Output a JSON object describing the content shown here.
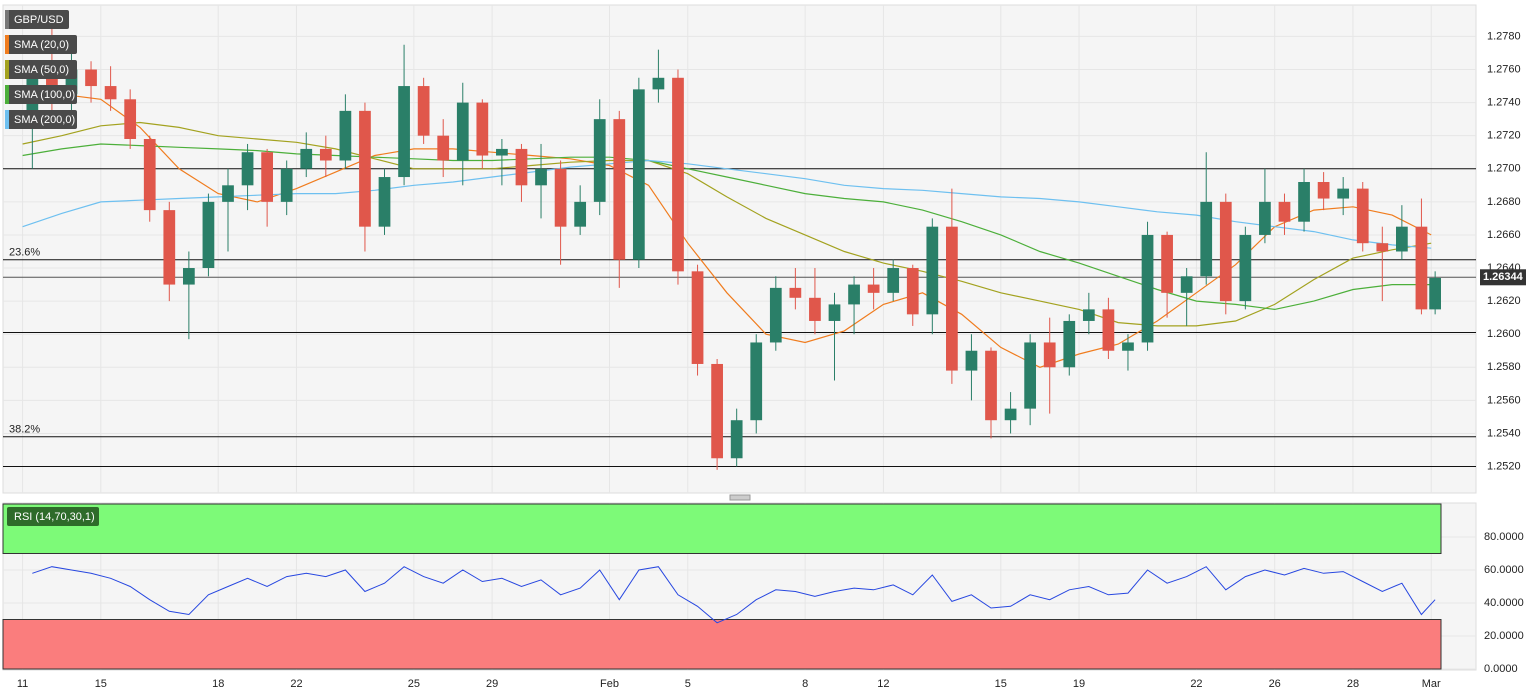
{
  "chart_data": [
    {
      "type": "candlestick",
      "symbol": "GBP/USD",
      "up_color": "#2a7f68",
      "down_color": "#e0574b",
      "grid": true,
      "xlim": [
        -0.5,
        36.25
      ],
      "ylim": [
        1.2504,
        1.2799
      ],
      "yticks": [
        {
          "value": 1.252,
          "label": "1.2520"
        },
        {
          "value": 1.254,
          "label": "1.2540"
        },
        {
          "value": 1.256,
          "label": "1.2560"
        },
        {
          "value": 1.258,
          "label": "1.2580"
        },
        {
          "value": 1.26,
          "label": "1.2600"
        },
        {
          "value": 1.262,
          "label": "1.2620"
        },
        {
          "value": 1.264,
          "label": "1.2640"
        },
        {
          "value": 1.266,
          "label": "1.2660"
        },
        {
          "value": 1.268,
          "label": "1.2680"
        },
        {
          "value": 1.27,
          "label": "1.2700"
        },
        {
          "value": 1.272,
          "label": "1.2720"
        },
        {
          "value": 1.274,
          "label": "1.2740"
        },
        {
          "value": 1.276,
          "label": "1.2760"
        },
        {
          "value": 1.278,
          "label": "1.2780"
        }
      ],
      "xticks": [
        {
          "value": 0,
          "label": "11"
        },
        {
          "value": 2,
          "label": "15"
        },
        {
          "value": 5,
          "label": "18"
        },
        {
          "value": 7,
          "label": "22"
        },
        {
          "value": 10,
          "label": "25"
        },
        {
          "value": 12,
          "label": "29"
        },
        {
          "value": 15,
          "label": "Feb"
        },
        {
          "value": 17,
          "label": "5"
        },
        {
          "value": 20,
          "label": "8"
        },
        {
          "value": 22,
          "label": "12"
        },
        {
          "value": 25,
          "label": "15"
        },
        {
          "value": 27,
          "label": "19"
        },
        {
          "value": 30,
          "label": "22"
        },
        {
          "value": 32,
          "label": "26"
        },
        {
          "value": 34,
          "label": "28"
        },
        {
          "value": 36,
          "label": "Mar"
        }
      ],
      "x": [
        0.25,
        0.75,
        1.25,
        1.75,
        2.25,
        2.75,
        3.25,
        3.75,
        4.25,
        4.75,
        5.25,
        5.75,
        6.25,
        6.75,
        7.25,
        7.75,
        8.25,
        8.75,
        9.25,
        9.75,
        10.25,
        10.75,
        11.25,
        11.75,
        12.25,
        12.75,
        13.25,
        13.75,
        14.25,
        14.75,
        15.25,
        15.75,
        16.25,
        16.75,
        17.25,
        17.75,
        18.25,
        18.75,
        19.25,
        19.75,
        20.25,
        20.75,
        21.25,
        21.75,
        22.25,
        22.75,
        23.25,
        23.75,
        24.25,
        24.75,
        25.25,
        25.75,
        26.25,
        26.75,
        27.25,
        27.75,
        28.25,
        28.75,
        29.25,
        29.75,
        30.25,
        30.75,
        31.25,
        31.75,
        32.25,
        32.75,
        33.25,
        33.75,
        34.25,
        34.75,
        35.25,
        35.75,
        36.1
      ],
      "open": [
        1.2725,
        1.2755,
        1.2745,
        1.276,
        1.275,
        1.2742,
        1.2718,
        1.2675,
        1.263,
        1.264,
        1.268,
        1.269,
        1.271,
        1.268,
        1.27,
        1.2712,
        1.2705,
        1.2735,
        1.2665,
        1.2695,
        1.275,
        1.272,
        1.2705,
        1.274,
        1.2708,
        1.2712,
        1.269,
        1.27,
        1.2665,
        1.268,
        1.273,
        1.2645,
        1.2748,
        1.2755,
        1.2638,
        1.2582,
        1.2525,
        1.2548,
        1.2595,
        1.2628,
        1.2622,
        1.2608,
        1.2618,
        1.263,
        1.2625,
        1.264,
        1.2612,
        1.2665,
        1.2578,
        1.259,
        1.2548,
        1.2555,
        1.2595,
        1.258,
        1.2608,
        1.2615,
        1.259,
        1.2595,
        1.266,
        1.2625,
        1.2635,
        1.268,
        1.262,
        1.266,
        1.268,
        1.2668,
        1.2692,
        1.2682,
        1.2688,
        1.2655,
        1.265,
        1.2665,
        1.2615
      ],
      "high": [
        1.2765,
        1.2785,
        1.277,
        1.2765,
        1.2762,
        1.2748,
        1.272,
        1.268,
        1.265,
        1.2685,
        1.27,
        1.2715,
        1.2712,
        1.2705,
        1.2722,
        1.272,
        1.2745,
        1.274,
        1.27,
        1.2775,
        1.2755,
        1.273,
        1.2752,
        1.2742,
        1.2718,
        1.2715,
        1.2715,
        1.2705,
        1.269,
        1.2742,
        1.2735,
        1.2755,
        1.2772,
        1.276,
        1.2642,
        1.2585,
        1.2555,
        1.26,
        1.2635,
        1.264,
        1.264,
        1.2625,
        1.2635,
        1.264,
        1.2645,
        1.2642,
        1.267,
        1.2688,
        1.26,
        1.2592,
        1.2565,
        1.26,
        1.261,
        1.2612,
        1.2625,
        1.2622,
        1.26,
        1.2668,
        1.2662,
        1.264,
        1.271,
        1.2685,
        1.2665,
        1.27,
        1.2685,
        1.27,
        1.2698,
        1.2695,
        1.2692,
        1.2665,
        1.2678,
        1.2682,
        1.2638
      ],
      "low": [
        1.27,
        1.2735,
        1.2735,
        1.274,
        1.2735,
        1.2712,
        1.2668,
        1.262,
        1.2597,
        1.2635,
        1.265,
        1.2675,
        1.2665,
        1.2672,
        1.2695,
        1.2695,
        1.27,
        1.265,
        1.266,
        1.269,
        1.2715,
        1.2695,
        1.269,
        1.27,
        1.269,
        1.268,
        1.267,
        1.2642,
        1.266,
        1.2672,
        1.2628,
        1.264,
        1.274,
        1.263,
        1.2575,
        1.2518,
        1.252,
        1.254,
        1.259,
        1.2615,
        1.26,
        1.2572,
        1.26,
        1.2615,
        1.262,
        1.2605,
        1.26,
        1.257,
        1.256,
        1.2537,
        1.254,
        1.2545,
        1.2552,
        1.2575,
        1.26,
        1.2585,
        1.2578,
        1.259,
        1.261,
        1.2605,
        1.263,
        1.2612,
        1.2615,
        1.2655,
        1.266,
        1.2662,
        1.2675,
        1.2672,
        1.265,
        1.262,
        1.2645,
        1.2612,
        1.2612
      ],
      "close": [
        1.2755,
        1.2745,
        1.276,
        1.275,
        1.2742,
        1.2718,
        1.2675,
        1.263,
        1.264,
        1.268,
        1.269,
        1.271,
        1.268,
        1.27,
        1.2712,
        1.2705,
        1.2735,
        1.2665,
        1.2695,
        1.275,
        1.272,
        1.2705,
        1.274,
        1.2708,
        1.2712,
        1.269,
        1.27,
        1.2665,
        1.268,
        1.273,
        1.2645,
        1.2748,
        1.2755,
        1.2638,
        1.2582,
        1.2525,
        1.2548,
        1.2595,
        1.2628,
        1.2622,
        1.2608,
        1.2618,
        1.263,
        1.2625,
        1.264,
        1.2612,
        1.2665,
        1.2578,
        1.259,
        1.2548,
        1.2555,
        1.2595,
        1.258,
        1.2608,
        1.2615,
        1.259,
        1.2595,
        1.266,
        1.2625,
        1.2635,
        1.268,
        1.262,
        1.266,
        1.268,
        1.2668,
        1.2692,
        1.2682,
        1.2688,
        1.2655,
        1.265,
        1.2665,
        1.2615,
        1.2634
      ],
      "overlays": [
        {
          "name": "SMA (20,0)",
          "color": "#f07c1e",
          "x": [
            0,
            1,
            2,
            3,
            4,
            5,
            6,
            7,
            8,
            9,
            10,
            11,
            12,
            13,
            14,
            15,
            16,
            17,
            18,
            19,
            20,
            21,
            22,
            23,
            24,
            25,
            26,
            27,
            28,
            29,
            30,
            31,
            32,
            33,
            34,
            35,
            36
          ],
          "values": [
            1.274,
            1.2745,
            1.2742,
            1.2725,
            1.27,
            1.2685,
            1.268,
            1.2688,
            1.2698,
            1.2708,
            1.2712,
            1.2712,
            1.271,
            1.2708,
            1.2706,
            1.2702,
            1.269,
            1.2655,
            1.2625,
            1.26,
            1.2595,
            1.2602,
            1.2618,
            1.2625,
            1.2612,
            1.2592,
            1.258,
            1.2588,
            1.2594,
            1.2608,
            1.2625,
            1.2642,
            1.2665,
            1.2675,
            1.2677,
            1.2672,
            1.266
          ]
        },
        {
          "name": "SMA (50,0)",
          "color": "#a3a21f",
          "x": [
            0,
            1,
            2,
            3,
            4,
            5,
            6,
            7,
            8,
            9,
            10,
            11,
            12,
            13,
            14,
            15,
            16,
            17,
            18,
            19,
            20,
            21,
            22,
            23,
            24,
            25,
            26,
            27,
            28,
            29,
            30,
            31,
            32,
            33,
            34,
            35,
            36
          ],
          "values": [
            1.2715,
            1.272,
            1.2726,
            1.2728,
            1.2725,
            1.272,
            1.2718,
            1.2716,
            1.2712,
            1.2706,
            1.27,
            1.27,
            1.27,
            1.2702,
            1.2704,
            1.2705,
            1.2705,
            1.2697,
            1.2683,
            1.267,
            1.266,
            1.265,
            1.2643,
            1.2638,
            1.2632,
            1.2625,
            1.262,
            1.2615,
            1.2607,
            1.2605,
            1.2605,
            1.2608,
            1.2618,
            1.2633,
            1.2646,
            1.2651,
            1.2655
          ]
        },
        {
          "name": "SMA (100,0)",
          "color": "#4caf3a",
          "x": [
            0,
            1,
            2,
            3,
            4,
            5,
            6,
            7,
            8,
            9,
            10,
            11,
            12,
            13,
            14,
            15,
            16,
            17,
            18,
            19,
            20,
            21,
            22,
            23,
            24,
            25,
            26,
            27,
            28,
            29,
            30,
            31,
            32,
            33,
            34,
            35,
            36
          ],
          "values": [
            1.2708,
            1.2712,
            1.2715,
            1.2714,
            1.2713,
            1.2712,
            1.2711,
            1.2709,
            1.2708,
            1.2707,
            1.2706,
            1.2705,
            1.2705,
            1.2706,
            1.2707,
            1.2707,
            1.2705,
            1.27,
            1.2695,
            1.269,
            1.2685,
            1.2682,
            1.268,
            1.2675,
            1.2668,
            1.266,
            1.265,
            1.2643,
            1.2635,
            1.2627,
            1.262,
            1.2618,
            1.2615,
            1.262,
            1.2627,
            1.263,
            1.263
          ]
        },
        {
          "name": "SMA (200,0)",
          "color": "#6ec0f0",
          "x": [
            0,
            1,
            2,
            3,
            4,
            5,
            6,
            7,
            8,
            9,
            10,
            11,
            12,
            13,
            14,
            15,
            16,
            17,
            18,
            19,
            20,
            21,
            22,
            23,
            24,
            25,
            26,
            27,
            28,
            29,
            30,
            31,
            32,
            33,
            34,
            35,
            36
          ],
          "values": [
            1.2665,
            1.2673,
            1.268,
            1.2681,
            1.2682,
            1.2683,
            1.2684,
            1.2685,
            1.2685,
            1.2687,
            1.269,
            1.2692,
            1.2695,
            1.2698,
            1.2701,
            1.2703,
            1.2705,
            1.2703,
            1.27,
            1.2697,
            1.2694,
            1.269,
            1.2688,
            1.2687,
            1.2685,
            1.2683,
            1.2682,
            1.268,
            1.2677,
            1.2674,
            1.2672,
            1.2668,
            1.2665,
            1.2662,
            1.2657,
            1.2654,
            1.2652
          ]
        }
      ],
      "levels": [
        {
          "value": 1.27
        },
        {
          "value": 1.2645,
          "label": "23.6%"
        },
        {
          "value": 1.2601
        },
        {
          "value": 1.2538,
          "label": "38.2%"
        },
        {
          "value": 1.252
        }
      ],
      "last_price": 1.26344
    },
    {
      "type": "line",
      "name": "RSI (14,70,30,1)",
      "color": "#2747e0",
      "ylim": [
        0,
        100
      ],
      "yticks": [
        {
          "value": 0,
          "label": "0.0000"
        },
        {
          "value": 20,
          "label": "20.0000"
        },
        {
          "value": 40,
          "label": "40.0000"
        },
        {
          "value": 60,
          "label": "60.0000"
        },
        {
          "value": 80,
          "label": "80.0000"
        }
      ],
      "bands": [
        {
          "from": 70,
          "to": 100,
          "color": "#7dfa78"
        },
        {
          "from": 0,
          "to": 30,
          "color": "#fa7d7d"
        }
      ],
      "values": [
        58,
        62,
        60,
        58,
        55,
        50,
        42,
        35,
        33,
        45,
        50,
        55,
        50,
        56,
        58,
        56,
        60,
        47,
        52,
        62,
        56,
        52,
        60,
        53,
        55,
        50,
        54,
        45,
        49,
        60,
        42,
        60,
        62,
        45,
        38,
        28,
        33,
        42,
        48,
        47,
        44,
        47,
        49,
        48,
        51,
        45,
        57,
        41,
        45,
        37,
        38,
        45,
        42,
        48,
        50,
        45,
        46,
        60,
        52,
        56,
        62,
        48,
        56,
        60,
        57,
        61,
        58,
        59,
        53,
        47,
        52,
        33,
        42
      ]
    }
  ]
}
